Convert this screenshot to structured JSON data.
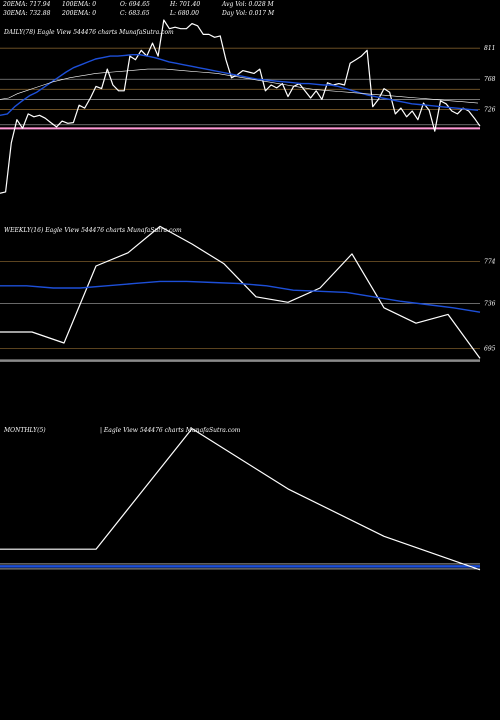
{
  "header": {
    "ema20": "20EMA: 717.94",
    "ema30": "30EMA: 732.88",
    "ema100": "100EMA: 0",
    "ema200": "200EMA: 0",
    "open": "O: 694.65",
    "close": "C: 683.65",
    "high": "H: 701.40",
    "low": "L: 680.00",
    "avg_vol": "Avg Vol: 0.028 M",
    "day_vol": "Day Vol: 0.017 M"
  },
  "colors": {
    "background": "#000000",
    "price": "#ffffff",
    "ema": "#1d4fd8",
    "level": "#7a5a2a",
    "band": "#ff9ad6",
    "grey": "#8a8a8a"
  },
  "chart_data": [
    {
      "type": "line",
      "title": "DAILY(78) Eagle   View  544476  charts MunafaSutra.com",
      "right_labels": [
        "811",
        "768",
        "726"
      ],
      "level_lines": [
        811,
        768,
        754,
        740,
        726,
        705
      ],
      "band_level": 700,
      "ylim": [
        580,
        850
      ],
      "series": [
        {
          "values": [
            610,
            612,
            680,
            712,
            700,
            720,
            716,
            718,
            714,
            708,
            702,
            710,
            707,
            708,
            732,
            728,
            742,
            758,
            755,
            782,
            760,
            752,
            752,
            800,
            795,
            808,
            800,
            818,
            800,
            850,
            838,
            840,
            838,
            838,
            845,
            842,
            830,
            830,
            826,
            828,
            795,
            770,
            774,
            780,
            778,
            776,
            782,
            752,
            760,
            756,
            762,
            744,
            758,
            762,
            752,
            742,
            752,
            740,
            763,
            760,
            762,
            760,
            790,
            795,
            800,
            808,
            730,
            740,
            755,
            750,
            720,
            728,
            716,
            724,
            712,
            735,
            725,
            696,
            738,
            734,
            724,
            720,
            728,
            724,
            714,
            703
          ]
        },
        {
          "values": [
            718,
            720,
            730,
            738,
            745,
            750,
            757,
            764,
            771,
            778,
            784,
            788,
            792,
            796,
            798,
            800,
            800,
            801,
            802,
            802,
            800,
            798,
            795,
            792,
            790,
            788,
            786,
            784,
            782,
            780,
            778,
            776,
            774,
            772,
            770,
            768,
            767,
            766,
            765,
            764,
            763,
            762,
            762,
            761,
            760,
            760,
            758,
            755,
            752,
            749,
            746,
            744,
            742,
            740,
            738,
            736,
            734,
            733,
            732,
            731,
            730,
            729,
            728,
            727,
            726,
            725
          ]
        },
        {
          "values": [
            740,
            742,
            748,
            752,
            756,
            760,
            764,
            767,
            770,
            772,
            774,
            776,
            777,
            778,
            779,
            780,
            781,
            782,
            782,
            782,
            781,
            780,
            779,
            778,
            777,
            776,
            774,
            772,
            770,
            768,
            766,
            764,
            762,
            760,
            758,
            756,
            754,
            753,
            752,
            751,
            750,
            749,
            748,
            747,
            746,
            745,
            744,
            743,
            742,
            741,
            740,
            739,
            738,
            737,
            736,
            735
          ]
        }
      ]
    },
    {
      "type": "line",
      "title": "WEEKLY(16) Eagle   View  544476  charts MunafaSutra.com",
      "right_labels": [
        "774",
        "736",
        "695"
      ],
      "level_lines": [
        774,
        736,
        695
      ],
      "band_level": 684,
      "ylim": [
        680,
        810
      ],
      "series": [
        {
          "values": [
            710,
            710,
            700,
            770,
            782,
            806,
            790,
            772,
            742,
            737,
            750,
            781,
            732,
            718,
            726,
            686
          ]
        },
        {
          "values": [
            752,
            752,
            750,
            750,
            752,
            754,
            756,
            756,
            755,
            754,
            752,
            748,
            747,
            746,
            742,
            738,
            735,
            732,
            728
          ]
        }
      ]
    },
    {
      "type": "line",
      "title": "MONTHLY(5)",
      "subtitle": "| Eagle   View  544476  charts MunafaSutra.com",
      "band_level": 690,
      "ylim": [
        680,
        860
      ],
      "series": [
        {
          "values": [
            710,
            710,
            850,
            780,
            725,
            686
          ]
        }
      ]
    }
  ]
}
